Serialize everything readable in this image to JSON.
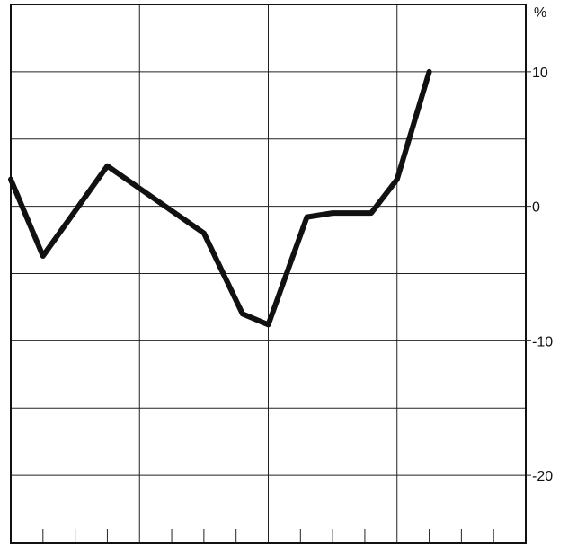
{
  "chart_data": {
    "type": "line",
    "title": "",
    "xlabel": "",
    "ylabel": "",
    "y_unit": "%",
    "ylim": [
      -25,
      15
    ],
    "xlim": [
      0,
      16
    ],
    "y_ticks": [
      {
        "value": 10,
        "label": "10"
      },
      {
        "value": 0,
        "label": "0"
      },
      {
        "value": -10,
        "label": "-10"
      },
      {
        "value": -20,
        "label": "-20"
      }
    ],
    "y_grid_values": [
      15,
      10,
      5,
      0,
      -5,
      -10,
      -15,
      -20
    ],
    "x_grid_values": [
      4,
      8,
      12
    ],
    "x_minor_ticks": [
      1,
      2,
      3,
      5,
      6,
      7,
      9,
      10,
      11,
      13,
      14,
      15
    ],
    "grid": true,
    "legend": "none",
    "series": [
      {
        "color": "#111111",
        "points": [
          {
            "x": 0,
            "y": 2
          },
          {
            "x": 1,
            "y": -3.7
          },
          {
            "x": 3,
            "y": 3
          },
          {
            "x": 6,
            "y": -2
          },
          {
            "x": 7.2,
            "y": -8
          },
          {
            "x": 8,
            "y": -8.8
          },
          {
            "x": 9.2,
            "y": -0.8
          },
          {
            "x": 10,
            "y": -0.5
          },
          {
            "x": 11.2,
            "y": -0.5
          },
          {
            "x": 12,
            "y": 2
          },
          {
            "x": 13,
            "y": 10
          }
        ]
      }
    ]
  }
}
